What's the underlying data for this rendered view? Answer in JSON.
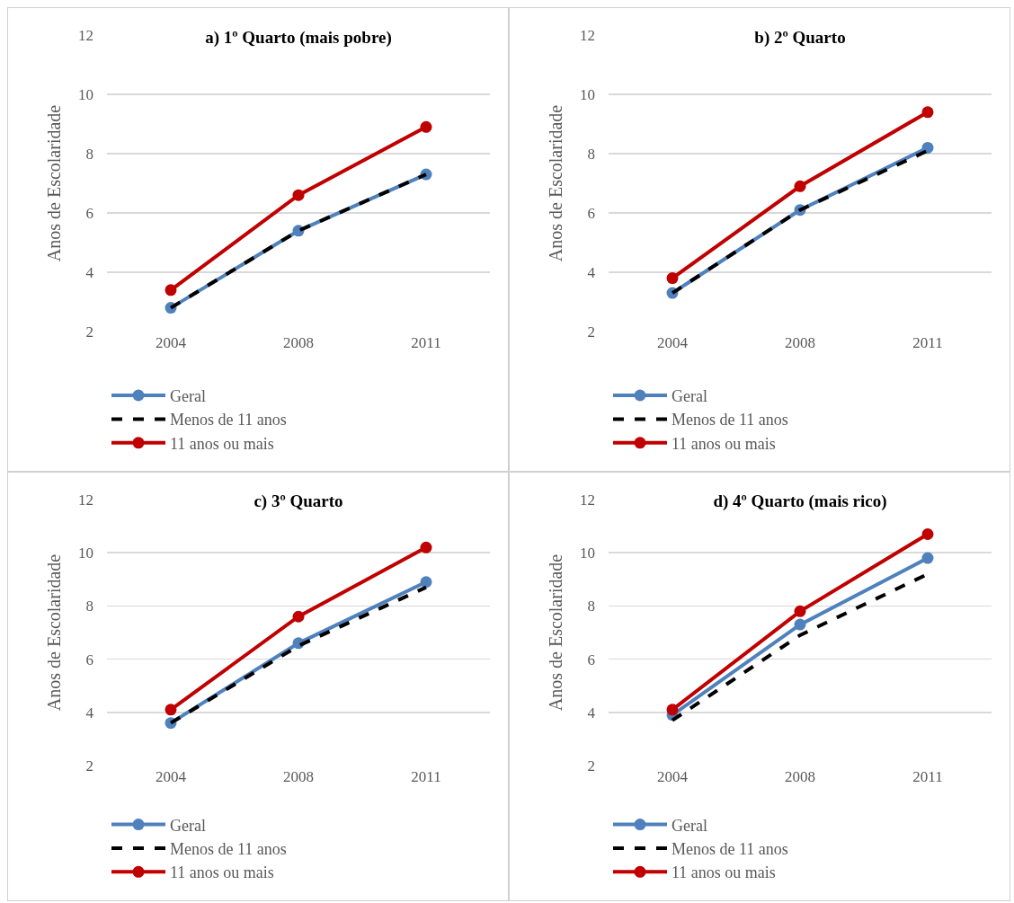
{
  "chart_data": [
    {
      "type": "line",
      "title": "a) 1º Quarto (mais pobre)",
      "ylabel": "Anos de Escolaridade",
      "categories": [
        "2004",
        "2008",
        "2011"
      ],
      "ylim": [
        2,
        12
      ],
      "yticks": [
        2,
        4,
        6,
        8,
        10,
        12
      ],
      "grid": "y",
      "legend": "bottom",
      "series": [
        {
          "name": "Geral",
          "color": "#4f81bd",
          "values": [
            2.8,
            5.4,
            7.3
          ],
          "marker": "circle",
          "line_style": "solid"
        },
        {
          "name": "Menos de 11 anos",
          "color": "#000000",
          "values": [
            2.8,
            5.4,
            7.3
          ],
          "marker": "none",
          "line_style": "dashed"
        },
        {
          "name": "11 anos ou mais",
          "color": "#c00000",
          "values": [
            3.4,
            6.6,
            8.9
          ],
          "marker": "circle",
          "line_style": "solid"
        }
      ]
    },
    {
      "type": "line",
      "title": "b) 2º Quarto",
      "ylabel": "Anos de Escolaridade",
      "categories": [
        "2004",
        "2008",
        "2011"
      ],
      "ylim": [
        2,
        12
      ],
      "yticks": [
        2,
        4,
        6,
        8,
        10,
        12
      ],
      "grid": "y",
      "legend": "bottom",
      "series": [
        {
          "name": "Geral",
          "color": "#4f81bd",
          "values": [
            3.3,
            6.1,
            8.2
          ],
          "marker": "circle",
          "line_style": "solid"
        },
        {
          "name": "Menos de 11 anos",
          "color": "#000000",
          "values": [
            3.3,
            6.1,
            8.1
          ],
          "marker": "none",
          "line_style": "dashed"
        },
        {
          "name": "11 anos ou mais",
          "color": "#c00000",
          "values": [
            3.8,
            6.9,
            9.4
          ],
          "marker": "circle",
          "line_style": "solid"
        }
      ]
    },
    {
      "type": "line",
      "title": "c) 3º Quarto",
      "ylabel": "Anos de Escolaridade",
      "categories": [
        "2004",
        "2008",
        "2011"
      ],
      "ylim": [
        2,
        12
      ],
      "yticks": [
        2,
        4,
        6,
        8,
        10,
        12
      ],
      "grid": "y",
      "legend": "bottom",
      "series": [
        {
          "name": "Geral",
          "color": "#4f81bd",
          "values": [
            3.6,
            6.6,
            8.9
          ],
          "marker": "circle",
          "line_style": "solid"
        },
        {
          "name": "Menos de 11 anos",
          "color": "#000000",
          "values": [
            3.6,
            6.5,
            8.7
          ],
          "marker": "none",
          "line_style": "dashed"
        },
        {
          "name": "11 anos ou mais",
          "color": "#c00000",
          "values": [
            4.1,
            7.6,
            10.2
          ],
          "marker": "circle",
          "line_style": "solid"
        }
      ]
    },
    {
      "type": "line",
      "title": "d) 4º Quarto (mais rico)",
      "ylabel": "Anos de Escolaridade",
      "categories": [
        "2004",
        "2008",
        "2011"
      ],
      "ylim": [
        2,
        12
      ],
      "yticks": [
        2,
        4,
        6,
        8,
        10,
        12
      ],
      "grid": "y",
      "legend": "bottom",
      "series": [
        {
          "name": "Geral",
          "color": "#4f81bd",
          "values": [
            3.9,
            7.3,
            9.8
          ],
          "marker": "circle",
          "line_style": "solid"
        },
        {
          "name": "Menos de 11 anos",
          "color": "#000000",
          "values": [
            3.7,
            6.9,
            9.2
          ],
          "marker": "none",
          "line_style": "dashed"
        },
        {
          "name": "11 anos ou mais",
          "color": "#c00000",
          "values": [
            4.1,
            7.8,
            10.7
          ],
          "marker": "circle",
          "line_style": "solid"
        }
      ]
    }
  ]
}
